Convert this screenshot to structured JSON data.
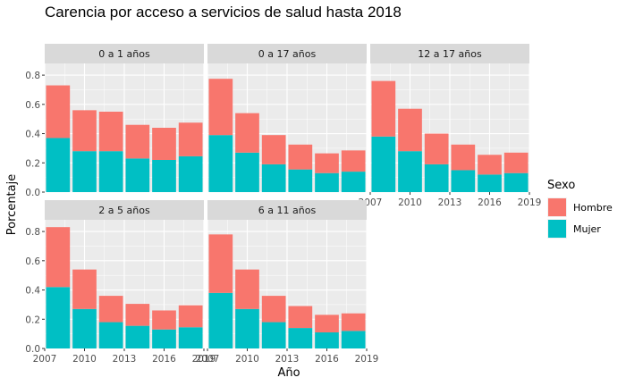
{
  "chart_data": {
    "type": "bar",
    "stacked": true,
    "faceted": true,
    "title": "Carencia por acceso a servicios de salud hasta 2018",
    "xlabel": "Año",
    "ylabel": "Porcentaje",
    "x": [
      2008,
      2010,
      2012,
      2014,
      2016,
      2018
    ],
    "xticks": [
      "2007",
      "2010",
      "2013",
      "2016",
      "2019"
    ],
    "xlim": [
      2007,
      2019
    ],
    "yticks": [
      "0.0",
      "0.2",
      "0.4",
      "0.6",
      "0.8"
    ],
    "ylim": [
      0,
      0.88
    ],
    "grid": true,
    "legend": {
      "title": "Sexo",
      "position": "right",
      "entries": [
        {
          "name": "Hombre",
          "color": "#F8766D"
        },
        {
          "name": "Mujer",
          "color": "#00BFC4"
        }
      ]
    },
    "panels": [
      {
        "label": "0 a 1 años",
        "mujer": [
          0.37,
          0.28,
          0.28,
          0.23,
          0.22,
          0.245
        ],
        "hombre": [
          0.36,
          0.28,
          0.27,
          0.23,
          0.22,
          0.23
        ]
      },
      {
        "label": "0 a 17 años",
        "mujer": [
          0.39,
          0.27,
          0.19,
          0.155,
          0.13,
          0.14
        ],
        "hombre": [
          0.385,
          0.27,
          0.2,
          0.17,
          0.135,
          0.145
        ]
      },
      {
        "label": "12 a 17 años",
        "mujer": [
          0.38,
          0.28,
          0.19,
          0.15,
          0.12,
          0.13
        ],
        "hombre": [
          0.38,
          0.29,
          0.21,
          0.175,
          0.135,
          0.14
        ]
      },
      {
        "label": "2 a 5 años",
        "mujer": [
          0.42,
          0.27,
          0.18,
          0.155,
          0.13,
          0.145
        ],
        "hombre": [
          0.41,
          0.27,
          0.18,
          0.15,
          0.13,
          0.15
        ]
      },
      {
        "label": "6 a 11 años",
        "mujer": [
          0.38,
          0.27,
          0.18,
          0.14,
          0.11,
          0.12
        ],
        "hombre": [
          0.4,
          0.27,
          0.18,
          0.15,
          0.12,
          0.12
        ]
      }
    ]
  }
}
